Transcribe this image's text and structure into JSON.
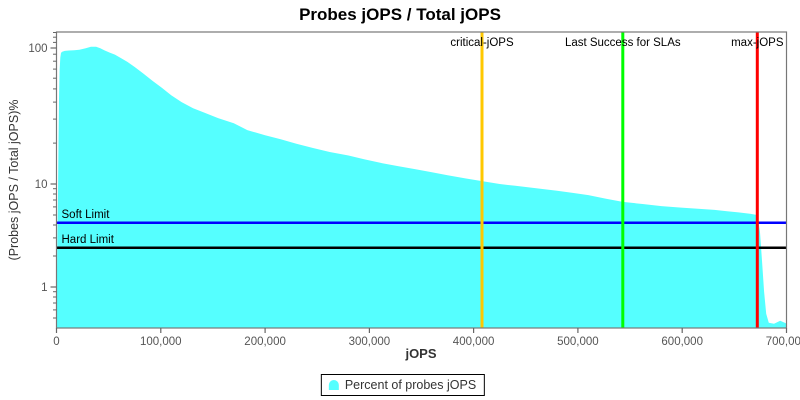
{
  "title": "Probes jOPS / Total jOPS",
  "axes": {
    "x_label": "jOPS",
    "y_label": "(Probes jOPS / Total jOPS)%",
    "x_tick_values": [
      0,
      100000,
      200000,
      300000,
      400000,
      500000,
      600000,
      700000
    ],
    "x_tick_labels": [
      "0",
      "100,000",
      "200,000",
      "300,000",
      "400,000",
      "500,000",
      "600,000",
      "700,000"
    ],
    "y_tick_values": [
      100,
      10,
      1
    ],
    "y_tick_labels": [
      "100",
      "10",
      "1"
    ],
    "y_minor_tick_values": [
      130,
      120,
      110,
      90,
      80,
      70,
      60,
      50,
      40,
      30,
      20,
      9,
      8,
      7,
      6,
      5,
      4,
      3,
      2,
      0.9,
      0.8,
      0.7,
      0.6,
      0.5
    ]
  },
  "chart_data": {
    "type": "area",
    "title": "Probes jOPS / Total jOPS",
    "xlabel": "jOPS",
    "ylabel": "(Probes jOPS / Total jOPS)%",
    "x_axis": {
      "scale": "linear",
      "min": 0,
      "max": 700000
    },
    "y_axis": {
      "scale": "log",
      "min": 0.4,
      "max": 131,
      "ticks": [
        1,
        10,
        100
      ]
    },
    "grid": false,
    "legend_position": "bottom",
    "series": [
      {
        "name": "Percent of probes jOPS",
        "color": "#55FFFF",
        "points": [
          [
            0,
            0.42
          ],
          [
            400,
            1.2
          ],
          [
            900,
            3
          ],
          [
            1400,
            8
          ],
          [
            1900,
            20
          ],
          [
            2400,
            42
          ],
          [
            3000,
            68
          ],
          [
            3600,
            85
          ],
          [
            4300,
            92
          ],
          [
            5500,
            94
          ],
          [
            8000,
            95.2
          ],
          [
            12000,
            95.8
          ],
          [
            17000,
            96.3
          ],
          [
            22000,
            97
          ],
          [
            28000,
            99.5
          ],
          [
            33000,
            102
          ],
          [
            38000,
            102
          ],
          [
            42000,
            99.5
          ],
          [
            46000,
            96
          ],
          [
            51000,
            92.5
          ],
          [
            56000,
            89.5
          ],
          [
            62000,
            84
          ],
          [
            68000,
            79
          ],
          [
            75000,
            72.5
          ],
          [
            83000,
            65
          ],
          [
            92000,
            57.5
          ],
          [
            101000,
            51
          ],
          [
            110000,
            45
          ],
          [
            120000,
            40
          ],
          [
            131000,
            36
          ],
          [
            142000,
            33.4
          ],
          [
            155000,
            30.5
          ],
          [
            170000,
            28
          ],
          [
            183000,
            24.9
          ],
          [
            200000,
            22.8
          ],
          [
            215000,
            21.3
          ],
          [
            230000,
            19.8
          ],
          [
            246000,
            18.4
          ],
          [
            262000,
            17.2
          ],
          [
            280000,
            16.2
          ],
          [
            295000,
            15.2
          ],
          [
            311000,
            14.3
          ],
          [
            328000,
            13.5
          ],
          [
            345000,
            12.8
          ],
          [
            360000,
            12.2
          ],
          [
            375000,
            11.6
          ],
          [
            392000,
            11.0
          ],
          [
            408000,
            10.5
          ],
          [
            425000,
            10.0
          ],
          [
            440000,
            9.6
          ],
          [
            460000,
            9.1
          ],
          [
            480000,
            8.6
          ],
          [
            495000,
            8.2
          ],
          [
            510000,
            7.8
          ],
          [
            527000,
            7.2
          ],
          [
            543000,
            6.7
          ],
          [
            562000,
            6.4
          ],
          [
            580000,
            6.1
          ],
          [
            599000,
            5.9
          ],
          [
            615000,
            5.75
          ],
          [
            631000,
            5.6
          ],
          [
            643000,
            5.45
          ],
          [
            654000,
            5.3
          ],
          [
            665000,
            5.15
          ],
          [
            672000,
            5.0
          ],
          [
            674500,
            3.5
          ],
          [
            676500,
            1.8
          ],
          [
            678500,
            0.9
          ],
          [
            680500,
            0.55
          ],
          [
            683000,
            0.45
          ],
          [
            688000,
            0.44
          ],
          [
            694000,
            0.47
          ],
          [
            700500,
            0.44
          ]
        ]
      }
    ],
    "vertical_markers": [
      {
        "label": "critical-jOPS",
        "x": 408000,
        "color": "#FFC800"
      },
      {
        "label": "Last Success for SLAs",
        "x": 543000,
        "color": "#00FF00"
      },
      {
        "label": "max-jOPS",
        "x": 672000,
        "color": "#FF0000"
      }
    ],
    "horizontal_markers": [
      {
        "label": "Soft Limit",
        "y": 4.2,
        "color": "#0000FF"
      },
      {
        "label": "Hard Limit",
        "y": 2.4,
        "color": "#000000"
      }
    ]
  },
  "legend": {
    "items": [
      {
        "label": "Percent of probes jOPS",
        "color": "#55FFFF",
        "marker": "tombstone"
      }
    ]
  },
  "colors": {
    "area_fill": "#55FFFF",
    "plot_border": "#777777",
    "tick": "#666666",
    "tick_label": "#555555",
    "marker_label": "#000000",
    "background": "#FFFFFF"
  }
}
